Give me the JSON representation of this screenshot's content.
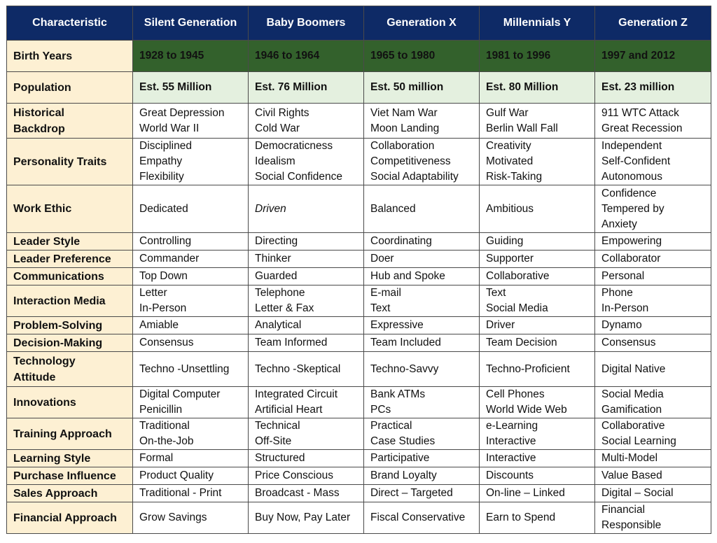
{
  "headers": [
    "Characteristic",
    "Silent Generation",
    "Baby Boomers",
    "Generation X",
    "Millennials Y",
    "Generation Z"
  ],
  "rows": [
    {
      "label": [
        "Birth Years"
      ],
      "cells": [
        [
          "1928 to 1945"
        ],
        [
          "1946 to 1964"
        ],
        [
          "1965 to 1980"
        ],
        [
          "1981 to 1996"
        ],
        [
          "1997 and 2012"
        ]
      ]
    },
    {
      "label": [
        "Population"
      ],
      "cells": [
        [
          "Est. 55 Million"
        ],
        [
          "Est. 76 Million"
        ],
        [
          "Est. 50 million"
        ],
        [
          "Est. 80 Million"
        ],
        [
          "Est. 23 million"
        ]
      ]
    },
    {
      "label": [
        "Historical",
        "Backdrop"
      ],
      "cells": [
        [
          "Great Depression",
          "World War II"
        ],
        [
          "Civil Rights",
          "Cold War"
        ],
        [
          "Viet Nam War",
          "Moon Landing"
        ],
        [
          "Gulf War",
          "Berlin Wall Fall"
        ],
        [
          "911 WTC Attack",
          "Great Recession"
        ]
      ]
    },
    {
      "label": [
        "Personality Traits"
      ],
      "cells": [
        [
          "Disciplined",
          "Empathy",
          "Flexibility"
        ],
        [
          "Democraticness",
          "Idealism",
          "Social Confidence"
        ],
        [
          "Collaboration",
          "Competitiveness",
          "Social Adaptability"
        ],
        [
          "Creativity",
          "Motivated",
          "Risk-Taking"
        ],
        [
          "Independent",
          "Self-Confident",
          "Autonomous"
        ]
      ]
    },
    {
      "label": [
        "Work Ethic"
      ],
      "cells": [
        [
          "Dedicated"
        ],
        [
          "Driven"
        ],
        [
          "Balanced"
        ],
        [
          "Ambitious"
        ],
        [
          "Confidence",
          "Tempered by",
          "Anxiety"
        ]
      ]
    },
    {
      "label": [
        "Leader Style"
      ],
      "cells": [
        [
          "Controlling"
        ],
        [
          "Directing"
        ],
        [
          "Coordinating"
        ],
        [
          "Guiding"
        ],
        [
          "Empowering"
        ]
      ]
    },
    {
      "label": [
        "Leader Preference"
      ],
      "cells": [
        [
          "Commander"
        ],
        [
          "Thinker"
        ],
        [
          "Doer"
        ],
        [
          "Supporter"
        ],
        [
          "Collaborator"
        ]
      ]
    },
    {
      "label": [
        "Communications"
      ],
      "cells": [
        [
          "Top Down"
        ],
        [
          "Guarded"
        ],
        [
          "Hub and Spoke"
        ],
        [
          "Collaborative"
        ],
        [
          "Personal"
        ]
      ]
    },
    {
      "label": [
        "Interaction Media"
      ],
      "cells": [
        [
          "Letter",
          "In-Person"
        ],
        [
          "Telephone",
          "Letter & Fax"
        ],
        [
          "E-mail",
          "Text"
        ],
        [
          "Text",
          "Social Media"
        ],
        [
          "Phone",
          "In-Person"
        ]
      ]
    },
    {
      "label": [
        "Problem-Solving"
      ],
      "cells": [
        [
          "Amiable"
        ],
        [
          "Analytical"
        ],
        [
          "Expressive"
        ],
        [
          "Driver"
        ],
        [
          "Dynamo"
        ]
      ]
    },
    {
      "label": [
        "Decision-Making"
      ],
      "cells": [
        [
          "Consensus"
        ],
        [
          "Team Informed"
        ],
        [
          "Team Included"
        ],
        [
          "Team Decision"
        ],
        [
          "Consensus"
        ]
      ]
    },
    {
      "label": [
        "Technology",
        "Attitude"
      ],
      "cells": [
        [
          "Techno -Unsettling"
        ],
        [
          "Techno -Skeptical"
        ],
        [
          "Techno-Savvy"
        ],
        [
          "Techno-Proficient"
        ],
        [
          "Digital Native"
        ]
      ]
    },
    {
      "label": [
        "Innovations"
      ],
      "cells": [
        [
          "Digital Computer",
          "Penicillin"
        ],
        [
          "Integrated Circuit",
          "Artificial Heart"
        ],
        [
          "Bank ATMs",
          "PCs"
        ],
        [
          "Cell Phones",
          "World Wide Web"
        ],
        [
          "Social Media",
          "Gamification"
        ]
      ]
    },
    {
      "label": [
        "Training Approach"
      ],
      "cells": [
        [
          "Traditional",
          "On-the-Job"
        ],
        [
          "Technical",
          "Off-Site"
        ],
        [
          "Practical",
          "Case Studies"
        ],
        [
          "e-Learning",
          "Interactive"
        ],
        [
          "Collaborative",
          "Social Learning"
        ]
      ]
    },
    {
      "label": [
        "Learning Style"
      ],
      "cells": [
        [
          "Formal"
        ],
        [
          "Structured"
        ],
        [
          "Participative"
        ],
        [
          "Interactive"
        ],
        [
          "Multi-Model"
        ]
      ]
    },
    {
      "label": [
        "Purchase Influence"
      ],
      "cells": [
        [
          "Product Quality"
        ],
        [
          "Price Conscious"
        ],
        [
          "Brand Loyalty"
        ],
        [
          "Discounts"
        ],
        [
          "Value Based"
        ]
      ]
    },
    {
      "label": [
        "Sales Approach"
      ],
      "cells": [
        [
          "Traditional - Print"
        ],
        [
          "Broadcast - Mass"
        ],
        [
          "Direct – Targeted"
        ],
        [
          "On-line – Linked"
        ],
        [
          "Digital – Social"
        ]
      ]
    },
    {
      "label": [
        "Financial Approach"
      ],
      "cells": [
        [
          "Grow Savings"
        ],
        [
          "Buy Now, Pay Later"
        ],
        [
          "Fiscal Conservative"
        ],
        [
          "Earn to Spend"
        ],
        [
          "Financial",
          "Responsible"
        ]
      ]
    }
  ]
}
